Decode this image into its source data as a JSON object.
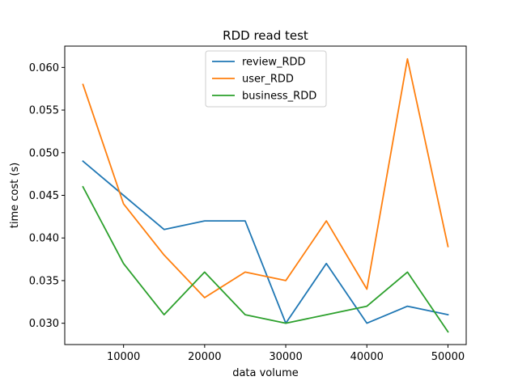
{
  "chart_data": {
    "type": "line",
    "title": "RDD read test",
    "xlabel": "data volume",
    "ylabel": "time cost (s)",
    "xlim": [
      2750,
      52250
    ],
    "ylim": [
      0.0275,
      0.0625
    ],
    "x_ticks": [
      10000,
      20000,
      30000,
      40000,
      50000
    ],
    "x_tick_labels": [
      "10000",
      "20000",
      "30000",
      "40000",
      "50000"
    ],
    "y_ticks": [
      0.03,
      0.035,
      0.04,
      0.045,
      0.05,
      0.055,
      0.06
    ],
    "y_tick_labels": [
      "0.030",
      "0.035",
      "0.040",
      "0.045",
      "0.050",
      "0.055",
      "0.060"
    ],
    "grid": false,
    "legend_position": "top-center",
    "x": [
      5000,
      10000,
      15000,
      20000,
      25000,
      30000,
      35000,
      40000,
      45000,
      50000
    ],
    "series": [
      {
        "name": "review_RDD",
        "color": "#1f77b4",
        "values": [
          0.049,
          0.045,
          0.041,
          0.042,
          0.042,
          0.03,
          0.037,
          0.03,
          0.032,
          0.031
        ]
      },
      {
        "name": "user_RDD",
        "color": "#ff7f0e",
        "values": [
          0.058,
          0.044,
          0.038,
          0.033,
          0.036,
          0.035,
          0.042,
          0.034,
          0.061,
          0.039
        ]
      },
      {
        "name": "business_RDD",
        "color": "#2ca02c",
        "values": [
          0.046,
          0.037,
          0.031,
          0.036,
          0.031,
          0.03,
          0.031,
          0.032,
          0.036,
          0.029
        ]
      }
    ]
  }
}
